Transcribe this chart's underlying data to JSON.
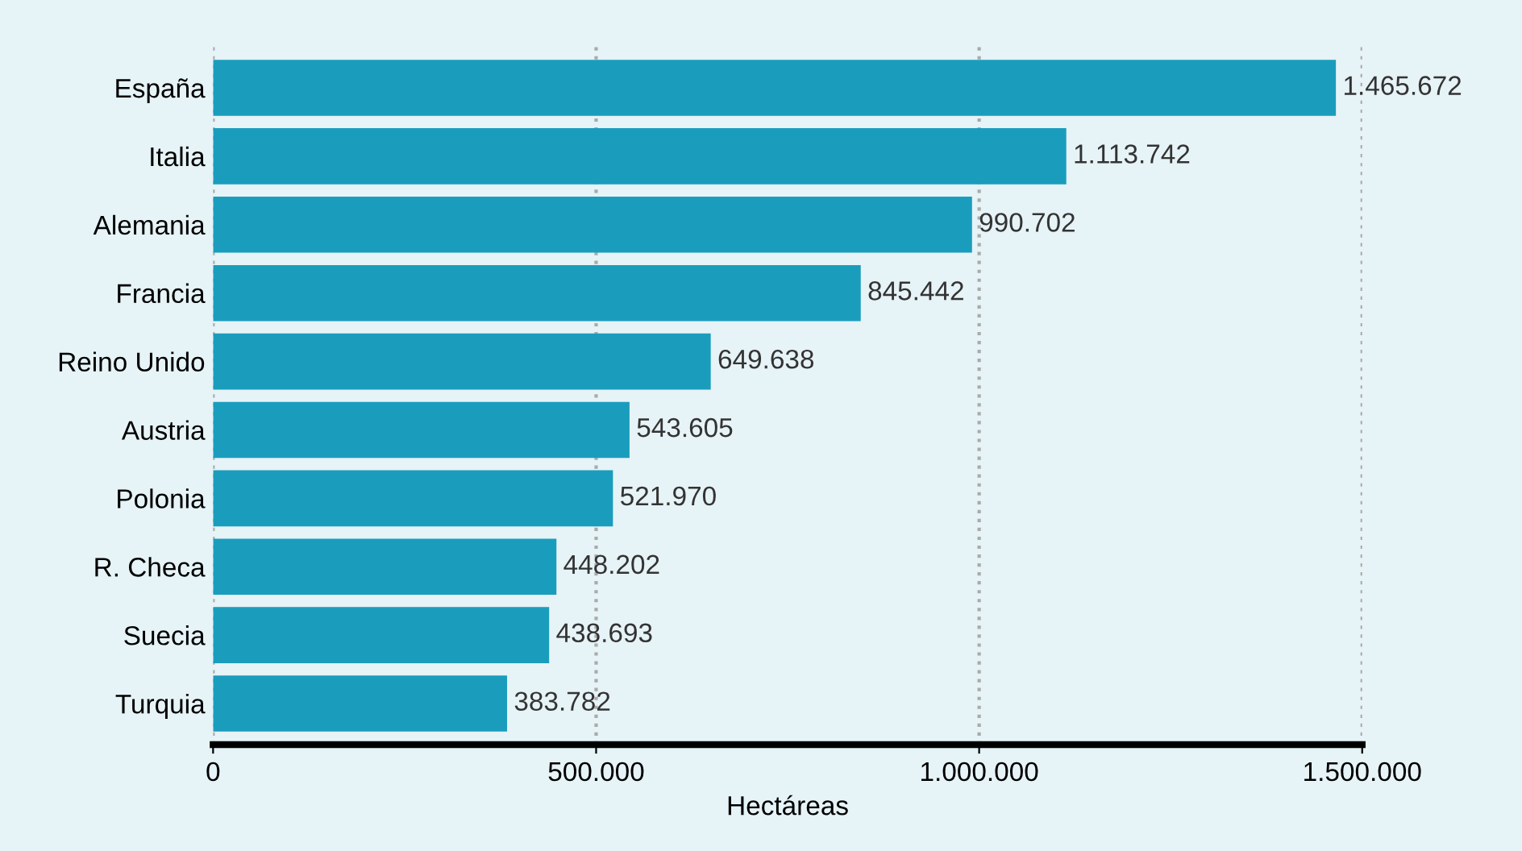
{
  "chart_data": {
    "type": "bar",
    "orientation": "horizontal",
    "xlabel": "Hectáreas",
    "categories": [
      "España",
      "Italia",
      "Alemania",
      "Francia",
      "Reino Unido",
      "Austria",
      "Polonia",
      "R. Checa",
      "Suecia",
      "Turquia"
    ],
    "values": [
      1465672,
      1113742,
      990702,
      845442,
      649638,
      543605,
      521970,
      448202,
      438693,
      383782
    ],
    "value_labels": [
      "1.465.672",
      "1.113.742",
      "990.702",
      "845.442",
      "649.638",
      "543.605",
      "521.970",
      "448.202",
      "438.693",
      "383.782"
    ],
    "color": "#1a9dbd",
    "xlim": [
      0,
      1500000
    ],
    "xticks": [
      {
        "value": 0,
        "label": "0"
      },
      {
        "value": 500000,
        "label": "500.000"
      },
      {
        "value": 1000000,
        "label": "1.000.000"
      },
      {
        "value": 1500000,
        "label": "1.500.000"
      }
    ],
    "grid": "x"
  }
}
